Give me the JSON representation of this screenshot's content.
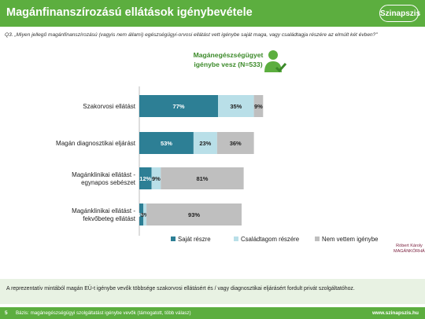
{
  "header": {
    "title": "Magánfinanszírozású ellátások igénybevétele",
    "logo_text": "Szinapszis"
  },
  "question": "Q3. „Miyen jellegű magánfinanszírozású (vagyis nem állami) egészségügyi-orvosi ellátást vett igénybe saját maga, vagy családtagja részére az elmúlt két évben?\"",
  "base_label_line1": "Magánegészségügyet",
  "base_label_line2": "igénybe vesz (N=533)",
  "colors": {
    "green": "#5cae3f",
    "teal": "#2d7f95",
    "light_blue": "#b9dfe8",
    "gray": "#bfbfbf"
  },
  "chart_data": {
    "type": "bar",
    "orientation": "horizontal",
    "stacked": true,
    "categories": [
      "Szakorvosi ellátást",
      "Magán diagnosztikai eljárást",
      "Magánklinikai ellátást - egynapos sebészet",
      "Magánklinikai ellátást - fekvőbeteg ellátást"
    ],
    "category_lines": [
      [
        "Szakorvosi ellátást"
      ],
      [
        "Magán diagnosztikai eljárást"
      ],
      [
        "Magánklinikai ellátást -",
        "egynapos sebészet"
      ],
      [
        "Magánklinikai ellátást -",
        "fekvőbeteg ellátást"
      ]
    ],
    "series": [
      {
        "name": "Saját részre",
        "values": [
          77,
          53,
          12,
          4
        ],
        "labels": [
          "77%",
          "53%",
          "12%",
          "4%"
        ],
        "color": "#2d7f95"
      },
      {
        "name": "Családtagom részére",
        "values": [
          35,
          23,
          9,
          3
        ],
        "labels": [
          "35%",
          "23%",
          "9%",
          "3%"
        ],
        "color": "#b9dfe8"
      },
      {
        "name": "Nem vettem igénybe",
        "values": [
          9,
          36,
          81,
          93
        ],
        "labels": [
          "9%",
          "36%",
          "81%",
          "93%"
        ],
        "color": "#bfbfbf"
      }
    ],
    "legend": "bottom"
  },
  "footer": {
    "text": "A reprezentatív mintából magán EÜ-t igénybe vevők többsége szakorvosi ellátásért és / vagy diagnosztikai eljárásért fordult privát szolgáltatóhoz.",
    "page": "5",
    "base": "Bázis: magánegészségügyi szolgáltatást igénybe vevők (támogatott, több válasz)",
    "site": "www.szinapszis.hu",
    "partner_logo_line1": "Róbert Károly",
    "partner_logo_line2": "MAGÁNKÓRHÁZ"
  }
}
